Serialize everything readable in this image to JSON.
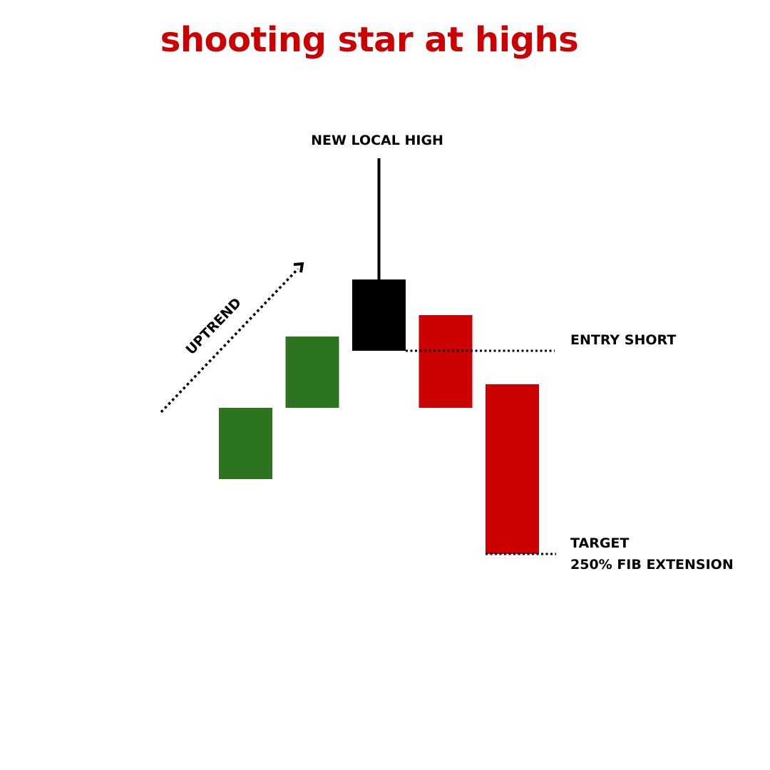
{
  "title": "shooting star at highs",
  "colors": {
    "title": "#cc0000",
    "bullish": "#2d7420",
    "bearish": "#cc0000",
    "star": "#000000",
    "annotation": "#000000"
  },
  "labels": {
    "new_local_high": "NEW LOCAL HIGH",
    "uptrend": "UPTREND",
    "entry_short": "ENTRY SHORT",
    "target": "TARGET",
    "fib_extension": "250% FIB EXTENSION"
  },
  "chart_data": {
    "type": "candlestick",
    "candles": [
      {
        "open": 4.5,
        "close": 3.5,
        "color": "bullish"
      },
      {
        "open": 3.5,
        "close": 2.5,
        "color": "bullish"
      },
      {
        "open": 1.7,
        "close": 2.7,
        "high": 0,
        "color": "star"
      },
      {
        "open": 2.2,
        "close": 3.5,
        "color": "bearish"
      },
      {
        "open": 3.17,
        "close": 5.55,
        "color": "bearish"
      }
    ],
    "levels": {
      "entry_short": 2.7,
      "target": 5.55
    }
  }
}
